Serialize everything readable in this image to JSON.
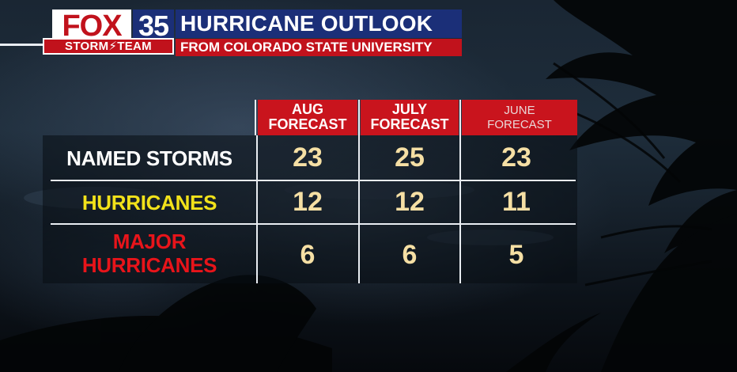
{
  "header": {
    "brand_main": "FOX",
    "brand_number": "35",
    "brand_team": "STORM⚡TEAM",
    "title": "HURRICANE OUTLOOK",
    "subtitle": "FROM COLORADO STATE UNIVERSITY"
  },
  "columns": [
    {
      "line1": "AUG",
      "line2": "FORECAST"
    },
    {
      "line1": "JULY",
      "line2": "FORECAST"
    },
    {
      "line1": "JUNE",
      "line2": "FORECAST"
    }
  ],
  "rows": [
    {
      "label_line1": "NAMED STORMS",
      "label_line2": "",
      "color": "#ffffff",
      "values": [
        "23",
        "25",
        "23"
      ]
    },
    {
      "label_line1": "HURRICANES",
      "label_line2": "",
      "color": "#f2e21a",
      "values": [
        "12",
        "12",
        "11"
      ]
    },
    {
      "label_line1": "MAJOR",
      "label_line2": "HURRICANES",
      "color": "#e8141a",
      "values": [
        "6",
        "6",
        "5"
      ]
    }
  ],
  "colors": {
    "header_blue": "#1b2f78",
    "header_red": "#c1121c",
    "value_text": "#f5dfa4"
  }
}
